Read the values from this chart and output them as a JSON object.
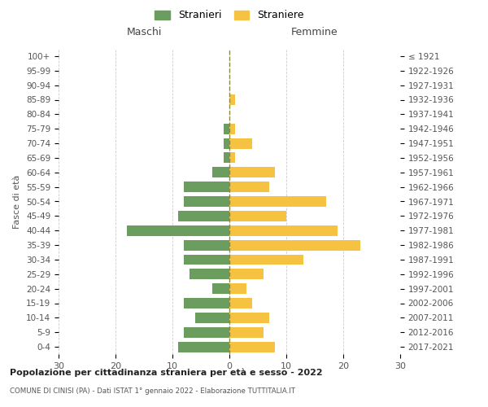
{
  "age_groups": [
    "0-4",
    "5-9",
    "10-14",
    "15-19",
    "20-24",
    "25-29",
    "30-34",
    "35-39",
    "40-44",
    "45-49",
    "50-54",
    "55-59",
    "60-64",
    "65-69",
    "70-74",
    "75-79",
    "80-84",
    "85-89",
    "90-94",
    "95-99",
    "100+"
  ],
  "birth_years": [
    "2017-2021",
    "2012-2016",
    "2007-2011",
    "2002-2006",
    "1997-2001",
    "1992-1996",
    "1987-1991",
    "1982-1986",
    "1977-1981",
    "1972-1976",
    "1967-1971",
    "1962-1966",
    "1957-1961",
    "1952-1956",
    "1947-1951",
    "1942-1946",
    "1937-1941",
    "1932-1936",
    "1927-1931",
    "1922-1926",
    "≤ 1921"
  ],
  "males": [
    9,
    8,
    6,
    8,
    3,
    7,
    8,
    8,
    18,
    9,
    8,
    8,
    3,
    1,
    1,
    1,
    0,
    0,
    0,
    0,
    0
  ],
  "females": [
    8,
    6,
    7,
    4,
    3,
    6,
    13,
    23,
    19,
    10,
    17,
    7,
    8,
    1,
    4,
    1,
    0,
    1,
    0,
    0,
    0
  ],
  "male_color": "#6b9e5e",
  "female_color": "#f5c242",
  "male_label": "Stranieri",
  "female_label": "Straniere",
  "title": "Popolazione per cittadinanza straniera per età e sesso - 2022",
  "subtitle": "COMUNE DI CINISI (PA) - Dati ISTAT 1° gennaio 2022 - Elaborazione TUTTITALIA.IT",
  "xlabel_left": "Maschi",
  "xlabel_right": "Femmine",
  "ylabel_left": "Fasce di età",
  "xlim": 30,
  "background_color": "#ffffff"
}
